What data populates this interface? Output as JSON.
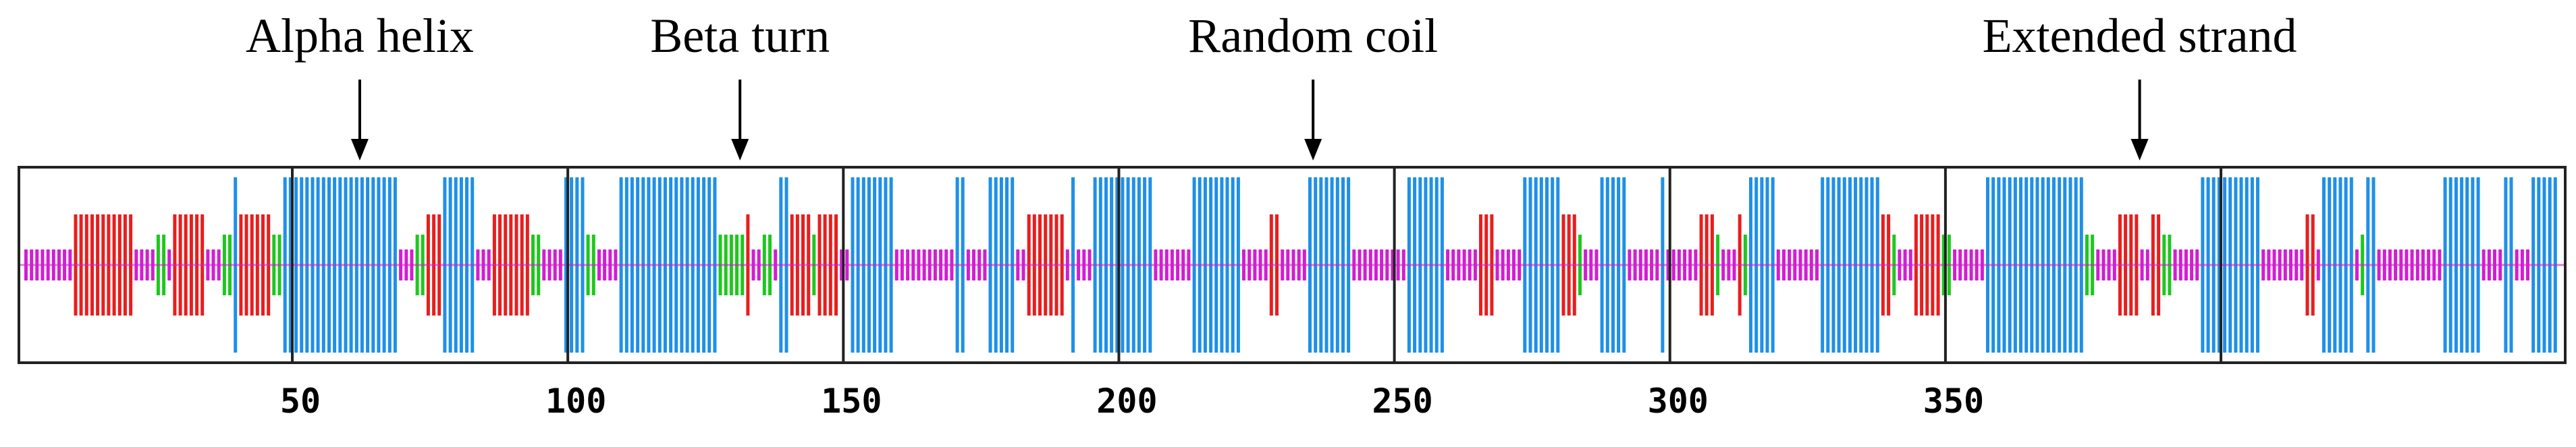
{
  "title": "",
  "annotations": [
    {
      "text": "Alpha helix",
      "residue": 62
    },
    {
      "text": "Beta turn",
      "residue": 131
    },
    {
      "text": "Random coil",
      "residue": 235
    },
    {
      "text": "Extended strand",
      "residue": 385
    }
  ],
  "axis": {
    "min": 1,
    "max": 460,
    "ticks": [
      "50",
      "100",
      "150",
      "200",
      "250",
      "300",
      "350"
    ]
  },
  "legend_colors": {
    "alpha_helix": "#1e90e8",
    "extended_strand": "#e81e1e",
    "beta_turn": "#1ec81e",
    "random_coil": "#d21ed2"
  },
  "chart_data": {
    "type": "sequence-track",
    "segments": [
      {
        "type": "coil",
        "start": 1,
        "end": 9
      },
      {
        "type": "strand",
        "start": 10,
        "end": 20
      },
      {
        "type": "coil",
        "start": 21,
        "end": 24
      },
      {
        "type": "turn",
        "start": 25,
        "end": 26
      },
      {
        "type": "coil",
        "start": 27,
        "end": 27
      },
      {
        "type": "strand",
        "start": 28,
        "end": 33
      },
      {
        "type": "coil",
        "start": 34,
        "end": 36
      },
      {
        "type": "turn",
        "start": 37,
        "end": 38
      },
      {
        "type": "helix",
        "start": 39,
        "end": 39
      },
      {
        "type": "strand",
        "start": 40,
        "end": 45
      },
      {
        "type": "turn",
        "start": 46,
        "end": 47
      },
      {
        "type": "helix",
        "start": 48,
        "end": 68
      },
      {
        "type": "coil",
        "start": 69,
        "end": 71
      },
      {
        "type": "turn",
        "start": 72,
        "end": 73
      },
      {
        "type": "strand",
        "start": 74,
        "end": 76
      },
      {
        "type": "helix",
        "start": 77,
        "end": 82
      },
      {
        "type": "coil",
        "start": 83,
        "end": 85
      },
      {
        "type": "strand",
        "start": 86,
        "end": 92
      },
      {
        "type": "turn",
        "start": 93,
        "end": 94
      },
      {
        "type": "coil",
        "start": 95,
        "end": 98
      },
      {
        "type": "helix",
        "start": 99,
        "end": 102
      },
      {
        "type": "turn",
        "start": 103,
        "end": 104
      },
      {
        "type": "coil",
        "start": 105,
        "end": 108
      },
      {
        "type": "helix",
        "start": 109,
        "end": 126
      },
      {
        "type": "turn",
        "start": 127,
        "end": 131
      },
      {
        "type": "strand",
        "start": 132,
        "end": 132
      },
      {
        "type": "coil",
        "start": 133,
        "end": 134
      },
      {
        "type": "turn",
        "start": 135,
        "end": 136
      },
      {
        "type": "coil",
        "start": 137,
        "end": 137
      },
      {
        "type": "helix",
        "start": 138,
        "end": 139
      },
      {
        "type": "strand",
        "start": 140,
        "end": 143
      },
      {
        "type": "turn",
        "start": 144,
        "end": 144
      },
      {
        "type": "strand",
        "start": 145,
        "end": 148
      },
      {
        "type": "coil",
        "start": 149,
        "end": 150
      },
      {
        "type": "helix",
        "start": 151,
        "end": 158
      },
      {
        "type": "coil",
        "start": 159,
        "end": 169
      },
      {
        "type": "helix",
        "start": 170,
        "end": 171
      },
      {
        "type": "coil",
        "start": 172,
        "end": 175
      },
      {
        "type": "helix",
        "start": 176,
        "end": 180
      },
      {
        "type": "coil",
        "start": 181,
        "end": 182
      },
      {
        "type": "strand",
        "start": 183,
        "end": 189
      },
      {
        "type": "coil",
        "start": 190,
        "end": 190
      },
      {
        "type": "helix",
        "start": 191,
        "end": 191
      },
      {
        "type": "coil",
        "start": 192,
        "end": 194
      },
      {
        "type": "helix",
        "start": 195,
        "end": 205
      },
      {
        "type": "coil",
        "start": 206,
        "end": 212
      },
      {
        "type": "helix",
        "start": 213,
        "end": 221
      },
      {
        "type": "coil",
        "start": 222,
        "end": 226
      },
      {
        "type": "strand",
        "start": 227,
        "end": 228
      },
      {
        "type": "coil",
        "start": 229,
        "end": 233
      },
      {
        "type": "helix",
        "start": 234,
        "end": 241
      },
      {
        "type": "coil",
        "start": 242,
        "end": 251
      },
      {
        "type": "helix",
        "start": 252,
        "end": 258
      },
      {
        "type": "coil",
        "start": 259,
        "end": 264
      },
      {
        "type": "strand",
        "start": 265,
        "end": 267
      },
      {
        "type": "coil",
        "start": 268,
        "end": 272
      },
      {
        "type": "helix",
        "start": 273,
        "end": 279
      },
      {
        "type": "strand",
        "start": 280,
        "end": 282
      },
      {
        "type": "turn",
        "start": 283,
        "end": 283
      },
      {
        "type": "coil",
        "start": 284,
        "end": 286
      },
      {
        "type": "helix",
        "start": 287,
        "end": 291
      },
      {
        "type": "coil",
        "start": 292,
        "end": 297
      },
      {
        "type": "helix",
        "start": 298,
        "end": 298
      },
      {
        "type": "coil",
        "start": 299,
        "end": 304
      },
      {
        "type": "strand",
        "start": 305,
        "end": 307
      },
      {
        "type": "turn",
        "start": 308,
        "end": 308
      },
      {
        "type": "coil",
        "start": 309,
        "end": 311
      },
      {
        "type": "strand",
        "start": 312,
        "end": 312
      },
      {
        "type": "turn",
        "start": 313,
        "end": 313
      },
      {
        "type": "helix",
        "start": 314,
        "end": 318
      },
      {
        "type": "coil",
        "start": 319,
        "end": 326
      },
      {
        "type": "helix",
        "start": 327,
        "end": 337
      },
      {
        "type": "strand",
        "start": 338,
        "end": 339
      },
      {
        "type": "turn",
        "start": 340,
        "end": 340
      },
      {
        "type": "coil",
        "start": 341,
        "end": 343
      },
      {
        "type": "strand",
        "start": 344,
        "end": 348
      },
      {
        "type": "turn",
        "start": 349,
        "end": 350
      },
      {
        "type": "coil",
        "start": 351,
        "end": 356
      },
      {
        "type": "helix",
        "start": 357,
        "end": 374
      },
      {
        "type": "turn",
        "start": 375,
        "end": 376
      },
      {
        "type": "coil",
        "start": 377,
        "end": 380
      },
      {
        "type": "strand",
        "start": 381,
        "end": 384
      },
      {
        "type": "coil",
        "start": 385,
        "end": 386
      },
      {
        "type": "strand",
        "start": 387,
        "end": 388
      },
      {
        "type": "turn",
        "start": 389,
        "end": 390
      },
      {
        "type": "coil",
        "start": 391,
        "end": 395
      },
      {
        "type": "helix",
        "start": 396,
        "end": 406
      },
      {
        "type": "coil",
        "start": 407,
        "end": 414
      },
      {
        "type": "strand",
        "start": 415,
        "end": 416
      },
      {
        "type": "coil",
        "start": 417,
        "end": 417
      },
      {
        "type": "helix",
        "start": 418,
        "end": 423
      },
      {
        "type": "coil",
        "start": 424,
        "end": 424
      },
      {
        "type": "turn",
        "start": 425,
        "end": 425
      },
      {
        "type": "helix",
        "start": 426,
        "end": 427
      },
      {
        "type": "coil",
        "start": 428,
        "end": 439
      },
      {
        "type": "helix",
        "start": 440,
        "end": 446
      },
      {
        "type": "coil",
        "start": 447,
        "end": 450
      },
      {
        "type": "helix",
        "start": 451,
        "end": 452
      },
      {
        "type": "coil",
        "start": 453,
        "end": 455
      },
      {
        "type": "helix",
        "start": 456,
        "end": 460
      }
    ]
  }
}
